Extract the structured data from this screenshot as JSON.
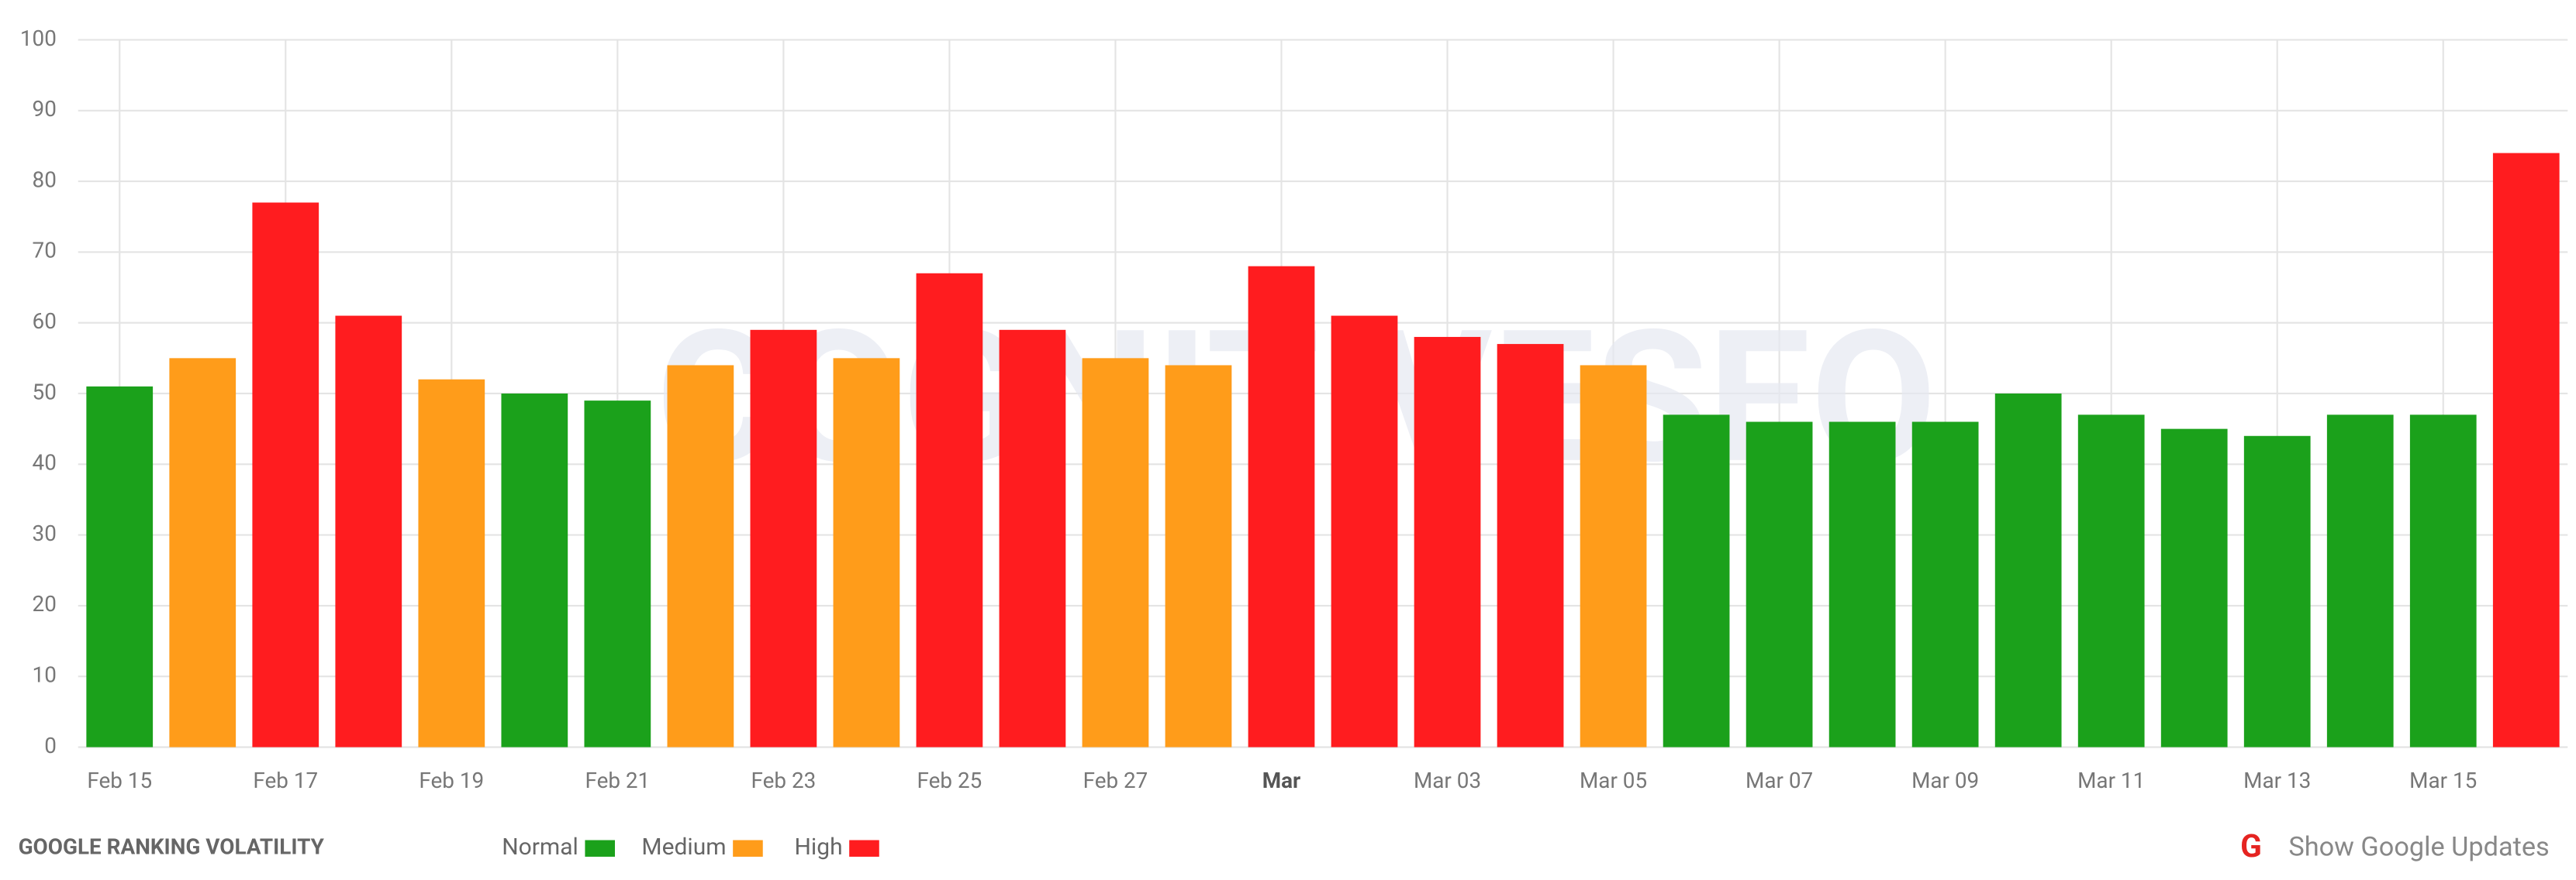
{
  "chart_data": {
    "type": "bar",
    "title": "GOOGLE RANKING VOLATILITY",
    "watermark": "COGNITIVESEO",
    "button": "Show Google Updates",
    "categories": [
      "Feb 15",
      null,
      "Feb 17",
      null,
      "Feb 19",
      null,
      "Feb 21",
      null,
      "Feb 23",
      null,
      "Feb 25",
      null,
      "Feb 27",
      null,
      "Mar",
      null,
      "Mar 03",
      null,
      "Mar 05",
      null,
      "Mar 07",
      null,
      "Mar 09",
      null,
      "Mar 11",
      null,
      "Mar 13",
      null,
      "Mar 15",
      null
    ],
    "series": [
      {
        "name": "Normal",
        "color": "#1ba11b",
        "values": [
          51,
          null,
          null,
          null,
          null,
          50,
          49,
          null,
          null,
          null,
          null,
          null,
          null,
          null,
          null,
          null,
          null,
          null,
          null,
          47,
          46,
          46,
          46,
          50,
          47,
          45,
          44,
          47,
          47,
          null
        ]
      },
      {
        "name": "Medium",
        "color": "#ff9c1a",
        "values": [
          null,
          55,
          null,
          null,
          52,
          null,
          null,
          54,
          null,
          55,
          null,
          null,
          55,
          54,
          null,
          null,
          null,
          null,
          54,
          null,
          null,
          null,
          null,
          null,
          null,
          null,
          null,
          null,
          null,
          null
        ]
      },
      {
        "name": "High",
        "color": "#ff1c1f",
        "values": [
          null,
          null,
          77,
          61,
          null,
          null,
          null,
          null,
          59,
          null,
          67,
          59,
          null,
          null,
          68,
          61,
          58,
          57,
          null,
          null,
          null,
          null,
          null,
          null,
          null,
          null,
          null,
          null,
          null,
          84
        ]
      }
    ],
    "ylim": [
      0,
      100
    ],
    "yticks": [
      0,
      10,
      20,
      30,
      40,
      50,
      60,
      70,
      80,
      90,
      100
    ],
    "grid": true
  }
}
